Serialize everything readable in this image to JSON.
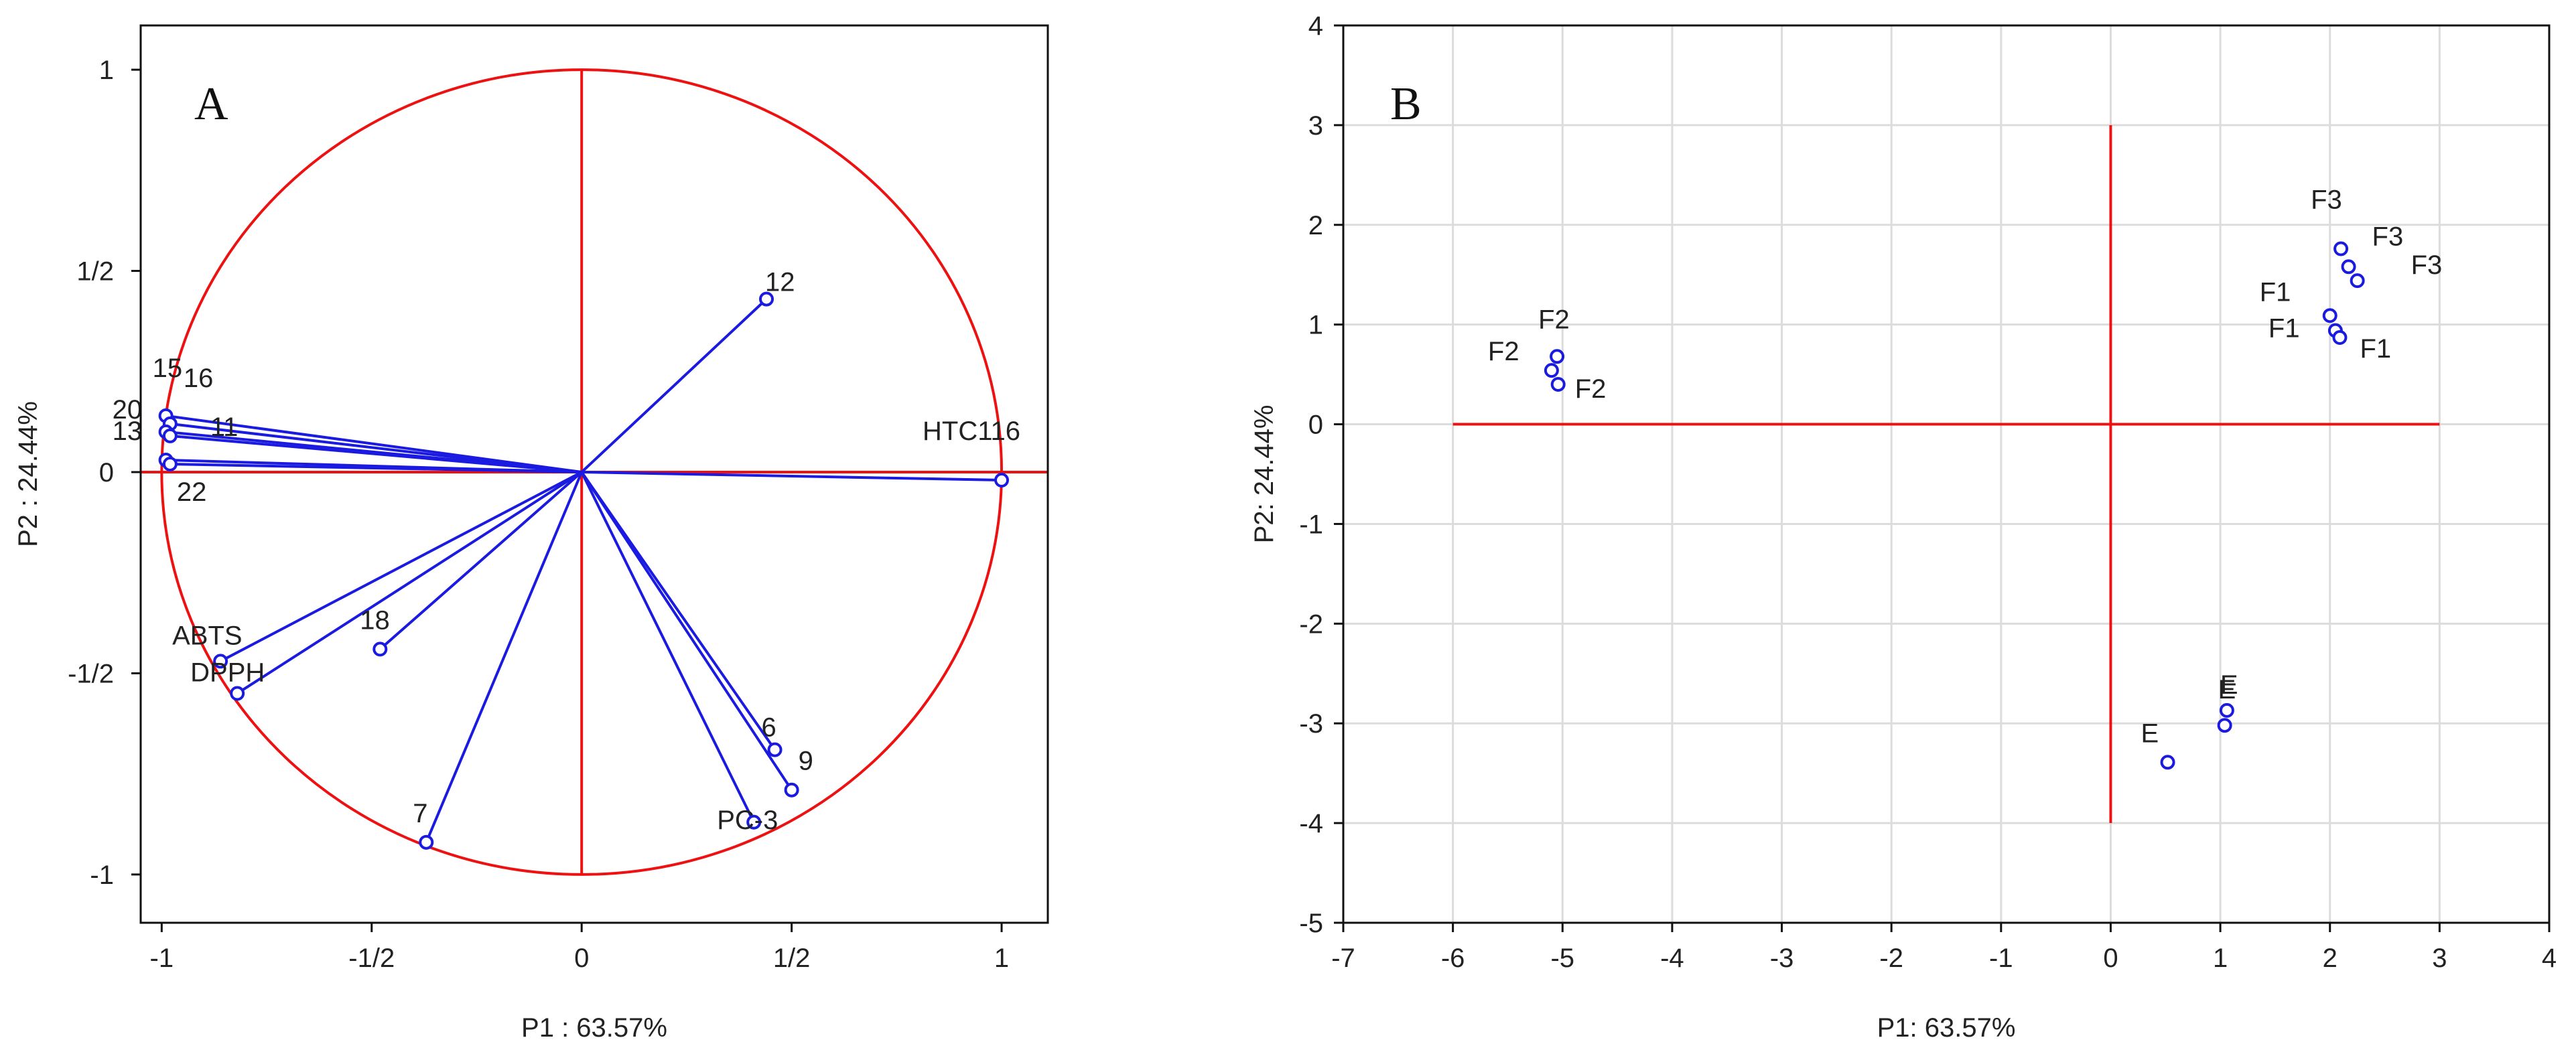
{
  "colors": {
    "circle_axes": "#ee1111",
    "points": "#1a1ae0",
    "grid": "#dcdcdc",
    "frame": "#111111"
  },
  "chart_data": [
    {
      "panel": "A",
      "type": "scatter",
      "subtype": "pca-correlation-circle",
      "xlabel": "P1 : 63.57%",
      "ylabel": "P2 : 24.44%",
      "xlim": [
        -1.05,
        1.11
      ],
      "ylim": [
        -1.12,
        1.11
      ],
      "xticks": [
        -1,
        -0.5,
        0,
        0.5,
        1
      ],
      "xtick_labels": [
        "-1",
        "-1/2",
        "0",
        "1/2",
        "1"
      ],
      "yticks": [
        -1,
        -0.5,
        0,
        0.5,
        1
      ],
      "ytick_labels": [
        "-1",
        "-1/2",
        "0",
        "1/2",
        "1"
      ],
      "grid": false,
      "unit_circle": true,
      "axes_lines": true,
      "points": [
        {
          "label": "12",
          "x": 0.44,
          "y": 0.43
        },
        {
          "label": "HTC116",
          "x": 1.0,
          "y": -0.02
        },
        {
          "label": "15",
          "x": -0.99,
          "y": 0.14
        },
        {
          "label": "16",
          "x": -0.98,
          "y": 0.12
        },
        {
          "label": "20",
          "x": -0.99,
          "y": 0.1
        },
        {
          "label": "11",
          "x": -0.98,
          "y": 0.09
        },
        {
          "label": "13",
          "x": -0.99,
          "y": 0.03
        },
        {
          "label": "22",
          "x": -0.98,
          "y": 0.02
        },
        {
          "label": "ABTS",
          "x": -0.86,
          "y": -0.47
        },
        {
          "label": "DPPH",
          "x": -0.82,
          "y": -0.55
        },
        {
          "label": "18",
          "x": -0.48,
          "y": -0.44
        },
        {
          "label": "7",
          "x": -0.37,
          "y": -0.92
        },
        {
          "label": "6",
          "x": 0.46,
          "y": -0.69
        },
        {
          "label": "9",
          "x": 0.5,
          "y": -0.79
        },
        {
          "label": "PC-3",
          "x": 0.41,
          "y": -0.87
        }
      ]
    },
    {
      "panel": "B",
      "type": "scatter",
      "xlabel": "P1: 63.57%",
      "ylabel": "P2: 24.44%",
      "xlim": [
        -7,
        4
      ],
      "ylim": [
        -5,
        4
      ],
      "xticks": [
        -7,
        -6,
        -5,
        -4,
        -3,
        -2,
        -1,
        0,
        1,
        2,
        3,
        4
      ],
      "xtick_labels": [
        "-7",
        "-6",
        "-5",
        "-4",
        "-3",
        "-2",
        "-1",
        "0",
        "1",
        "2",
        "3",
        "4"
      ],
      "yticks": [
        -5,
        -4,
        -3,
        -2,
        -1,
        0,
        1,
        2,
        3,
        4
      ],
      "ytick_labels": [
        "-5",
        "-4",
        "-3",
        "-2",
        "-1",
        "0",
        "1",
        "2",
        "3",
        "4"
      ],
      "grid": true,
      "cross_lines": {
        "horizontal_from": -6,
        "horizontal_to": 3,
        "vertical_from": -4,
        "vertical_to": 3
      },
      "points": [
        {
          "label": "F2",
          "x": -5.05,
          "y": 0.68
        },
        {
          "label": "F2",
          "x": -5.1,
          "y": 0.54
        },
        {
          "label": "F2",
          "x": -5.04,
          "y": 0.4
        },
        {
          "label": "F3",
          "x": 2.1,
          "y": 1.76
        },
        {
          "label": "F3",
          "x": 2.17,
          "y": 1.58
        },
        {
          "label": "F3",
          "x": 2.25,
          "y": 1.44
        },
        {
          "label": "F1",
          "x": 2.0,
          "y": 1.09
        },
        {
          "label": "F1",
          "x": 2.05,
          "y": 0.94
        },
        {
          "label": "F1",
          "x": 2.09,
          "y": 0.87
        },
        {
          "label": "E",
          "x": 1.06,
          "y": -2.87
        },
        {
          "label": "E",
          "x": 1.04,
          "y": -3.02
        },
        {
          "label": "E",
          "x": 0.52,
          "y": -3.39
        }
      ]
    }
  ]
}
